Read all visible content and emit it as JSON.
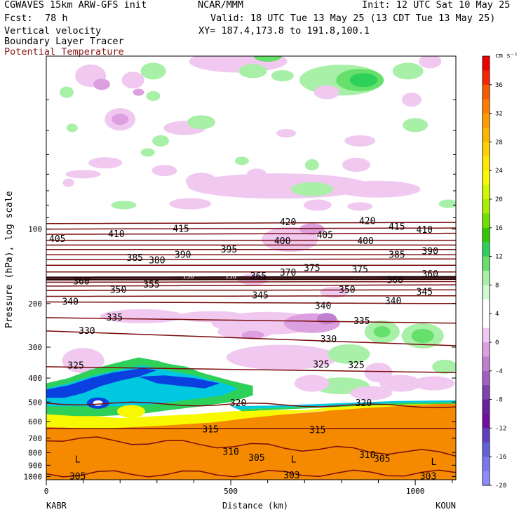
{
  "header": {
    "title": "CGWAVES 15km ARW-GFS init",
    "fcst_label": "Fcst:",
    "fcst_value": "78 h",
    "product": "NCAR/MMM",
    "init": "Init: 12 UTC Sat 10 May 25",
    "valid": "Valid: 18 UTC Tue 13 May 25 (13 CDT Tue 13 May 25)",
    "xy": "XY= 187.4,173.8 to 191.8,100.1",
    "fields": [
      "Vertical velocity",
      "Boundary Layer Tracer",
      "Potential Temperature"
    ]
  },
  "chart_data": {
    "type": "contour cross-section",
    "x_axis": {
      "label": "Distance (km)",
      "ticks": [
        0,
        500,
        1000
      ],
      "range": [
        0,
        1110
      ],
      "left_endpoint": "KABR",
      "right_endpoint": "KOUN"
    },
    "y_axis": {
      "label": "Pressure (hPa), log scale",
      "scale": "log",
      "ticks": [
        100,
        200,
        300,
        400,
        500,
        600,
        700,
        800,
        900,
        1000
      ],
      "range": [
        1030,
        20
      ]
    },
    "colorbar": {
      "unit": "cm s⁻¹",
      "labels": [
        36,
        32,
        28,
        24,
        20,
        16,
        12,
        8,
        4,
        0,
        -4,
        -8,
        -12,
        -16,
        -20
      ],
      "colors": [
        "#f00000",
        "#f42800",
        "#fa5a00",
        "#ff7c00",
        "#ff9a00",
        "#ffb400",
        "#ffd000",
        "#ffe800",
        "#f8fb00",
        "#d0f800",
        "#a8ef00",
        "#70e000",
        "#30c800",
        "#2dd15a",
        "#66e06a",
        "#a8f0a8",
        "#d0fad0",
        "#ffffff",
        "#ffffff",
        "#f0c8f0",
        "#dca0e0",
        "#c080d0",
        "#a060c0",
        "#8040b0",
        "#6a20a0",
        "#7010a0",
        "#6040c0",
        "#6060d8",
        "#7878f0",
        "#8c8cff"
      ]
    },
    "isentropes": [
      {
        "theta": 305,
        "p_left": 975,
        "p_right": 970
      },
      {
        "theta": 310,
        "p_left": 700,
        "p_right": 810
      },
      {
        "theta": 315,
        "p_left": 640,
        "p_right": 640
      },
      {
        "theta": 320,
        "p_left": 505,
        "p_right": 520
      },
      {
        "theta": 325,
        "p_left": 360,
        "p_right": 380
      },
      {
        "theta": 330,
        "p_left": 258,
        "p_right": 296
      },
      {
        "theta": 335,
        "p_left": 228,
        "p_right": 240
      },
      {
        "theta": 340,
        "p_left": 197,
        "p_right": 200
      },
      {
        "theta": 345,
        "p_left": 187,
        "p_right": 186
      },
      {
        "theta": 350,
        "p_left": 177,
        "p_right": 176
      },
      {
        "theta": 355,
        "p_left": 170,
        "p_right": 168
      },
      {
        "theta": 360,
        "p_left": 164,
        "p_right": 163
      },
      {
        "theta": 365,
        "p_left": 160,
        "p_right": 159
      },
      {
        "theta": 370,
        "p_left": 157,
        "p_right": 156
      },
      {
        "theta": 375,
        "p_left": 149,
        "p_right": 149
      },
      {
        "theta": 380,
        "p_left": 140,
        "p_right": 140
      },
      {
        "theta": 385,
        "p_left": 133,
        "p_right": 132
      },
      {
        "theta": 390,
        "p_left": 127,
        "p_right": 127
      },
      {
        "theta": 395,
        "p_left": 121,
        "p_right": 121
      },
      {
        "theta": 400,
        "p_left": 116,
        "p_right": 116
      },
      {
        "theta": 405,
        "p_left": 111,
        "p_right": 111
      },
      {
        "theta": 410,
        "p_left": 105,
        "p_right": 104
      },
      {
        "theta": 415,
        "p_left": 100,
        "p_right": 99
      },
      {
        "theta": 420,
        "p_left": 95,
        "p_right": 94
      }
    ],
    "contour_labels": [
      {
        "text": "405",
        "x": 30,
        "p": 110
      },
      {
        "text": "410",
        "x": 190,
        "p": 105
      },
      {
        "text": "415",
        "x": 365,
        "p": 100
      },
      {
        "text": "420",
        "x": 655,
        "p": 94
      },
      {
        "text": "405",
        "x": 755,
        "p": 106
      },
      {
        "text": "400",
        "x": 640,
        "p": 112
      },
      {
        "text": "420",
        "x": 870,
        "p": 93
      },
      {
        "text": "415",
        "x": 950,
        "p": 98
      },
      {
        "text": "410",
        "x": 1025,
        "p": 101
      },
      {
        "text": "400",
        "x": 865,
        "p": 112
      },
      {
        "text": "395",
        "x": 495,
        "p": 121
      },
      {
        "text": "390",
        "x": 370,
        "p": 127
      },
      {
        "text": "380",
        "x": 300,
        "p": 134
      },
      {
        "text": "385",
        "x": 240,
        "p": 131
      },
      {
        "text": "385",
        "x": 950,
        "p": 127
      },
      {
        "text": "390",
        "x": 1040,
        "p": 123
      },
      {
        "text": "375",
        "x": 720,
        "p": 144
      },
      {
        "text": "375",
        "x": 850,
        "p": 146
      },
      {
        "text": "370",
        "x": 655,
        "p": 150
      },
      {
        "text": "365",
        "x": 575,
        "p": 155
      },
      {
        "text": "360",
        "x": 95,
        "p": 163
      },
      {
        "text": "360",
        "x": 945,
        "p": 161
      },
      {
        "text": "360",
        "x": 1040,
        "p": 152
      },
      {
        "text": "355",
        "x": 285,
        "p": 168
      },
      {
        "text": "350",
        "x": 195,
        "p": 176
      },
      {
        "text": "350",
        "x": 815,
        "p": 176
      },
      {
        "text": "345",
        "x": 580,
        "p": 186
      },
      {
        "text": "345",
        "x": 1025,
        "p": 180
      },
      {
        "text": "340",
        "x": 65,
        "p": 197
      },
      {
        "text": "340",
        "x": 750,
        "p": 205
      },
      {
        "text": "340",
        "x": 940,
        "p": 196
      },
      {
        "text": "335",
        "x": 185,
        "p": 228
      },
      {
        "text": "335",
        "x": 855,
        "p": 236
      },
      {
        "text": "330",
        "x": 110,
        "p": 258
      },
      {
        "text": "330",
        "x": 765,
        "p": 279
      },
      {
        "text": "325",
        "x": 80,
        "p": 357
      },
      {
        "text": "325",
        "x": 745,
        "p": 353
      },
      {
        "text": "325",
        "x": 840,
        "p": 356
      },
      {
        "text": "320",
        "x": 520,
        "p": 505
      },
      {
        "text": "320",
        "x": 860,
        "p": 505
      },
      {
        "text": "315",
        "x": 445,
        "p": 645
      },
      {
        "text": "315",
        "x": 735,
        "p": 650
      },
      {
        "text": "310",
        "x": 500,
        "p": 795
      },
      {
        "text": "305",
        "x": 570,
        "p": 840
      },
      {
        "text": "310",
        "x": 870,
        "p": 820
      },
      {
        "text": "305",
        "x": 910,
        "p": 850
      },
      {
        "text": "305",
        "x": 85,
        "p": 1000
      },
      {
        "text": "303",
        "x": 665,
        "p": 990
      },
      {
        "text": "303",
        "x": 1035,
        "p": 1000
      }
    ],
    "pressure_center_labels": [
      {
        "text": "L",
        "x": 85,
        "p": 855
      },
      {
        "text": "L",
        "x": 670,
        "p": 855
      },
      {
        "text": "L",
        "x": 1050,
        "p": 875
      }
    ],
    "tropopause_annotations": [
      {
        "text": "150",
        "x": 385,
        "p": 155
      },
      {
        "text": "150",
        "x": 500,
        "p": 155
      }
    ],
    "tracer_bands": {
      "colors": {
        "outer": "#2dd15a",
        "cyan": "#00c8e0",
        "blue": "#0a3fe0",
        "yellow": "#f8f800",
        "orange": "#f58a00"
      }
    }
  }
}
